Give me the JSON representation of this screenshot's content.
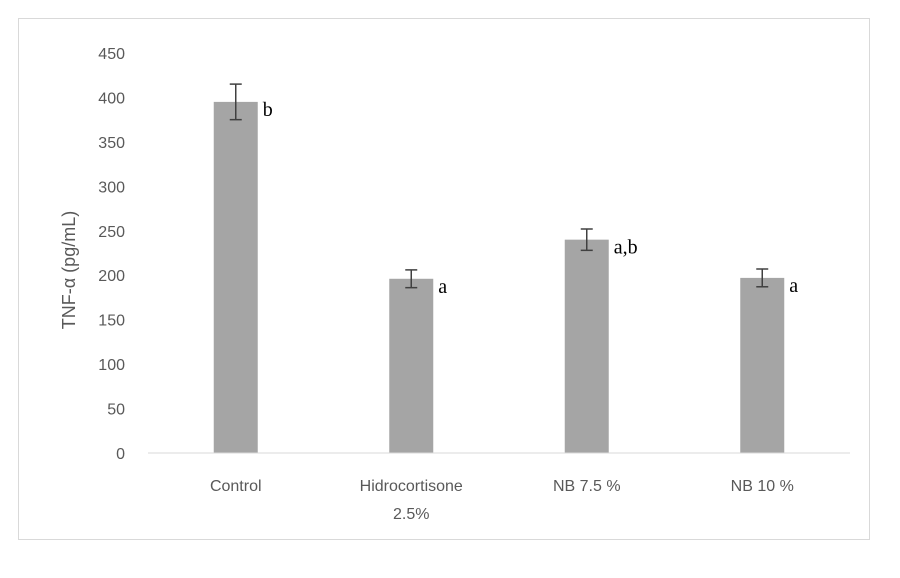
{
  "chart_data": {
    "type": "bar",
    "title": "",
    "xlabel": "",
    "ylabel": "TNF-α (pg/mL)",
    "categories": [
      [
        "Control"
      ],
      [
        "Hidrocortisone",
        "2.5%"
      ],
      [
        "NB 7.5 %"
      ],
      [
        "NB 10 %"
      ]
    ],
    "values": [
      395,
      196,
      240,
      197
    ],
    "error": [
      20,
      10,
      12,
      10
    ],
    "significance": [
      "b",
      "a",
      "a,b",
      "a"
    ],
    "ylim": [
      0,
      450
    ],
    "yticks": [
      0,
      50,
      100,
      150,
      200,
      250,
      300,
      350,
      400,
      450
    ],
    "grid": false,
    "legend": "none",
    "colors": {
      "bar": "#a5a5a5",
      "error_bar": "#404040",
      "axis": "#d9d9d9",
      "text": "#595959"
    }
  }
}
